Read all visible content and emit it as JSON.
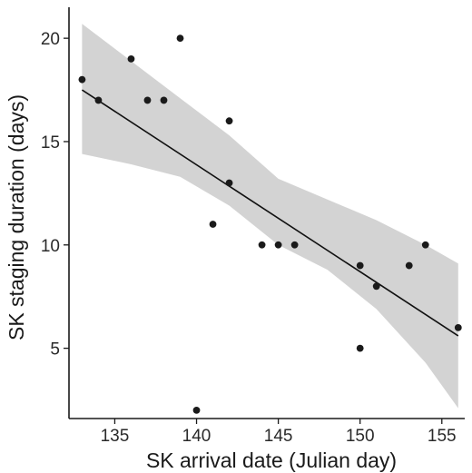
{
  "chart_data": {
    "type": "scatter",
    "title": "",
    "xlabel": "SK arrival date (Julian day)",
    "ylabel": "SK staging duration (days)",
    "xlim": [
      132.2,
      156.4
    ],
    "ylim": [
      1.6,
      21.5
    ],
    "xticks": [
      135,
      140,
      145,
      150,
      155
    ],
    "yticks": [
      5,
      10,
      15,
      20
    ],
    "grid": false,
    "legend": "none",
    "points": [
      {
        "x": 133,
        "y": 18
      },
      {
        "x": 134,
        "y": 17
      },
      {
        "x": 136,
        "y": 19
      },
      {
        "x": 137,
        "y": 17
      },
      {
        "x": 138,
        "y": 17
      },
      {
        "x": 139,
        "y": 20
      },
      {
        "x": 140,
        "y": 2
      },
      {
        "x": 141,
        "y": 11
      },
      {
        "x": 142,
        "y": 16
      },
      {
        "x": 142,
        "y": 13
      },
      {
        "x": 144,
        "y": 10
      },
      {
        "x": 145,
        "y": 10
      },
      {
        "x": 146,
        "y": 10
      },
      {
        "x": 150,
        "y": 9
      },
      {
        "x": 150,
        "y": 5
      },
      {
        "x": 151,
        "y": 8
      },
      {
        "x": 153,
        "y": 9
      },
      {
        "x": 154,
        "y": 10
      },
      {
        "x": 156,
        "y": 6
      }
    ],
    "fit_line": {
      "x": [
        133,
        156
      ],
      "y": [
        17.5,
        5.6
      ]
    },
    "confidence_band": {
      "x": [
        133,
        136,
        139,
        142,
        145,
        148,
        151,
        154,
        156
      ],
      "upper": [
        20.7,
        18.9,
        17.1,
        15.3,
        13.2,
        12.2,
        11.2,
        10.0,
        9.1
      ],
      "lower": [
        14.4,
        13.9,
        13.3,
        11.9,
        10.0,
        8.8,
        6.9,
        4.3,
        2.1
      ]
    },
    "colors": {
      "point": "#1a1a1a",
      "line": "#111111",
      "band": "#d3d3d3",
      "axis": "#1a1a1a"
    }
  }
}
